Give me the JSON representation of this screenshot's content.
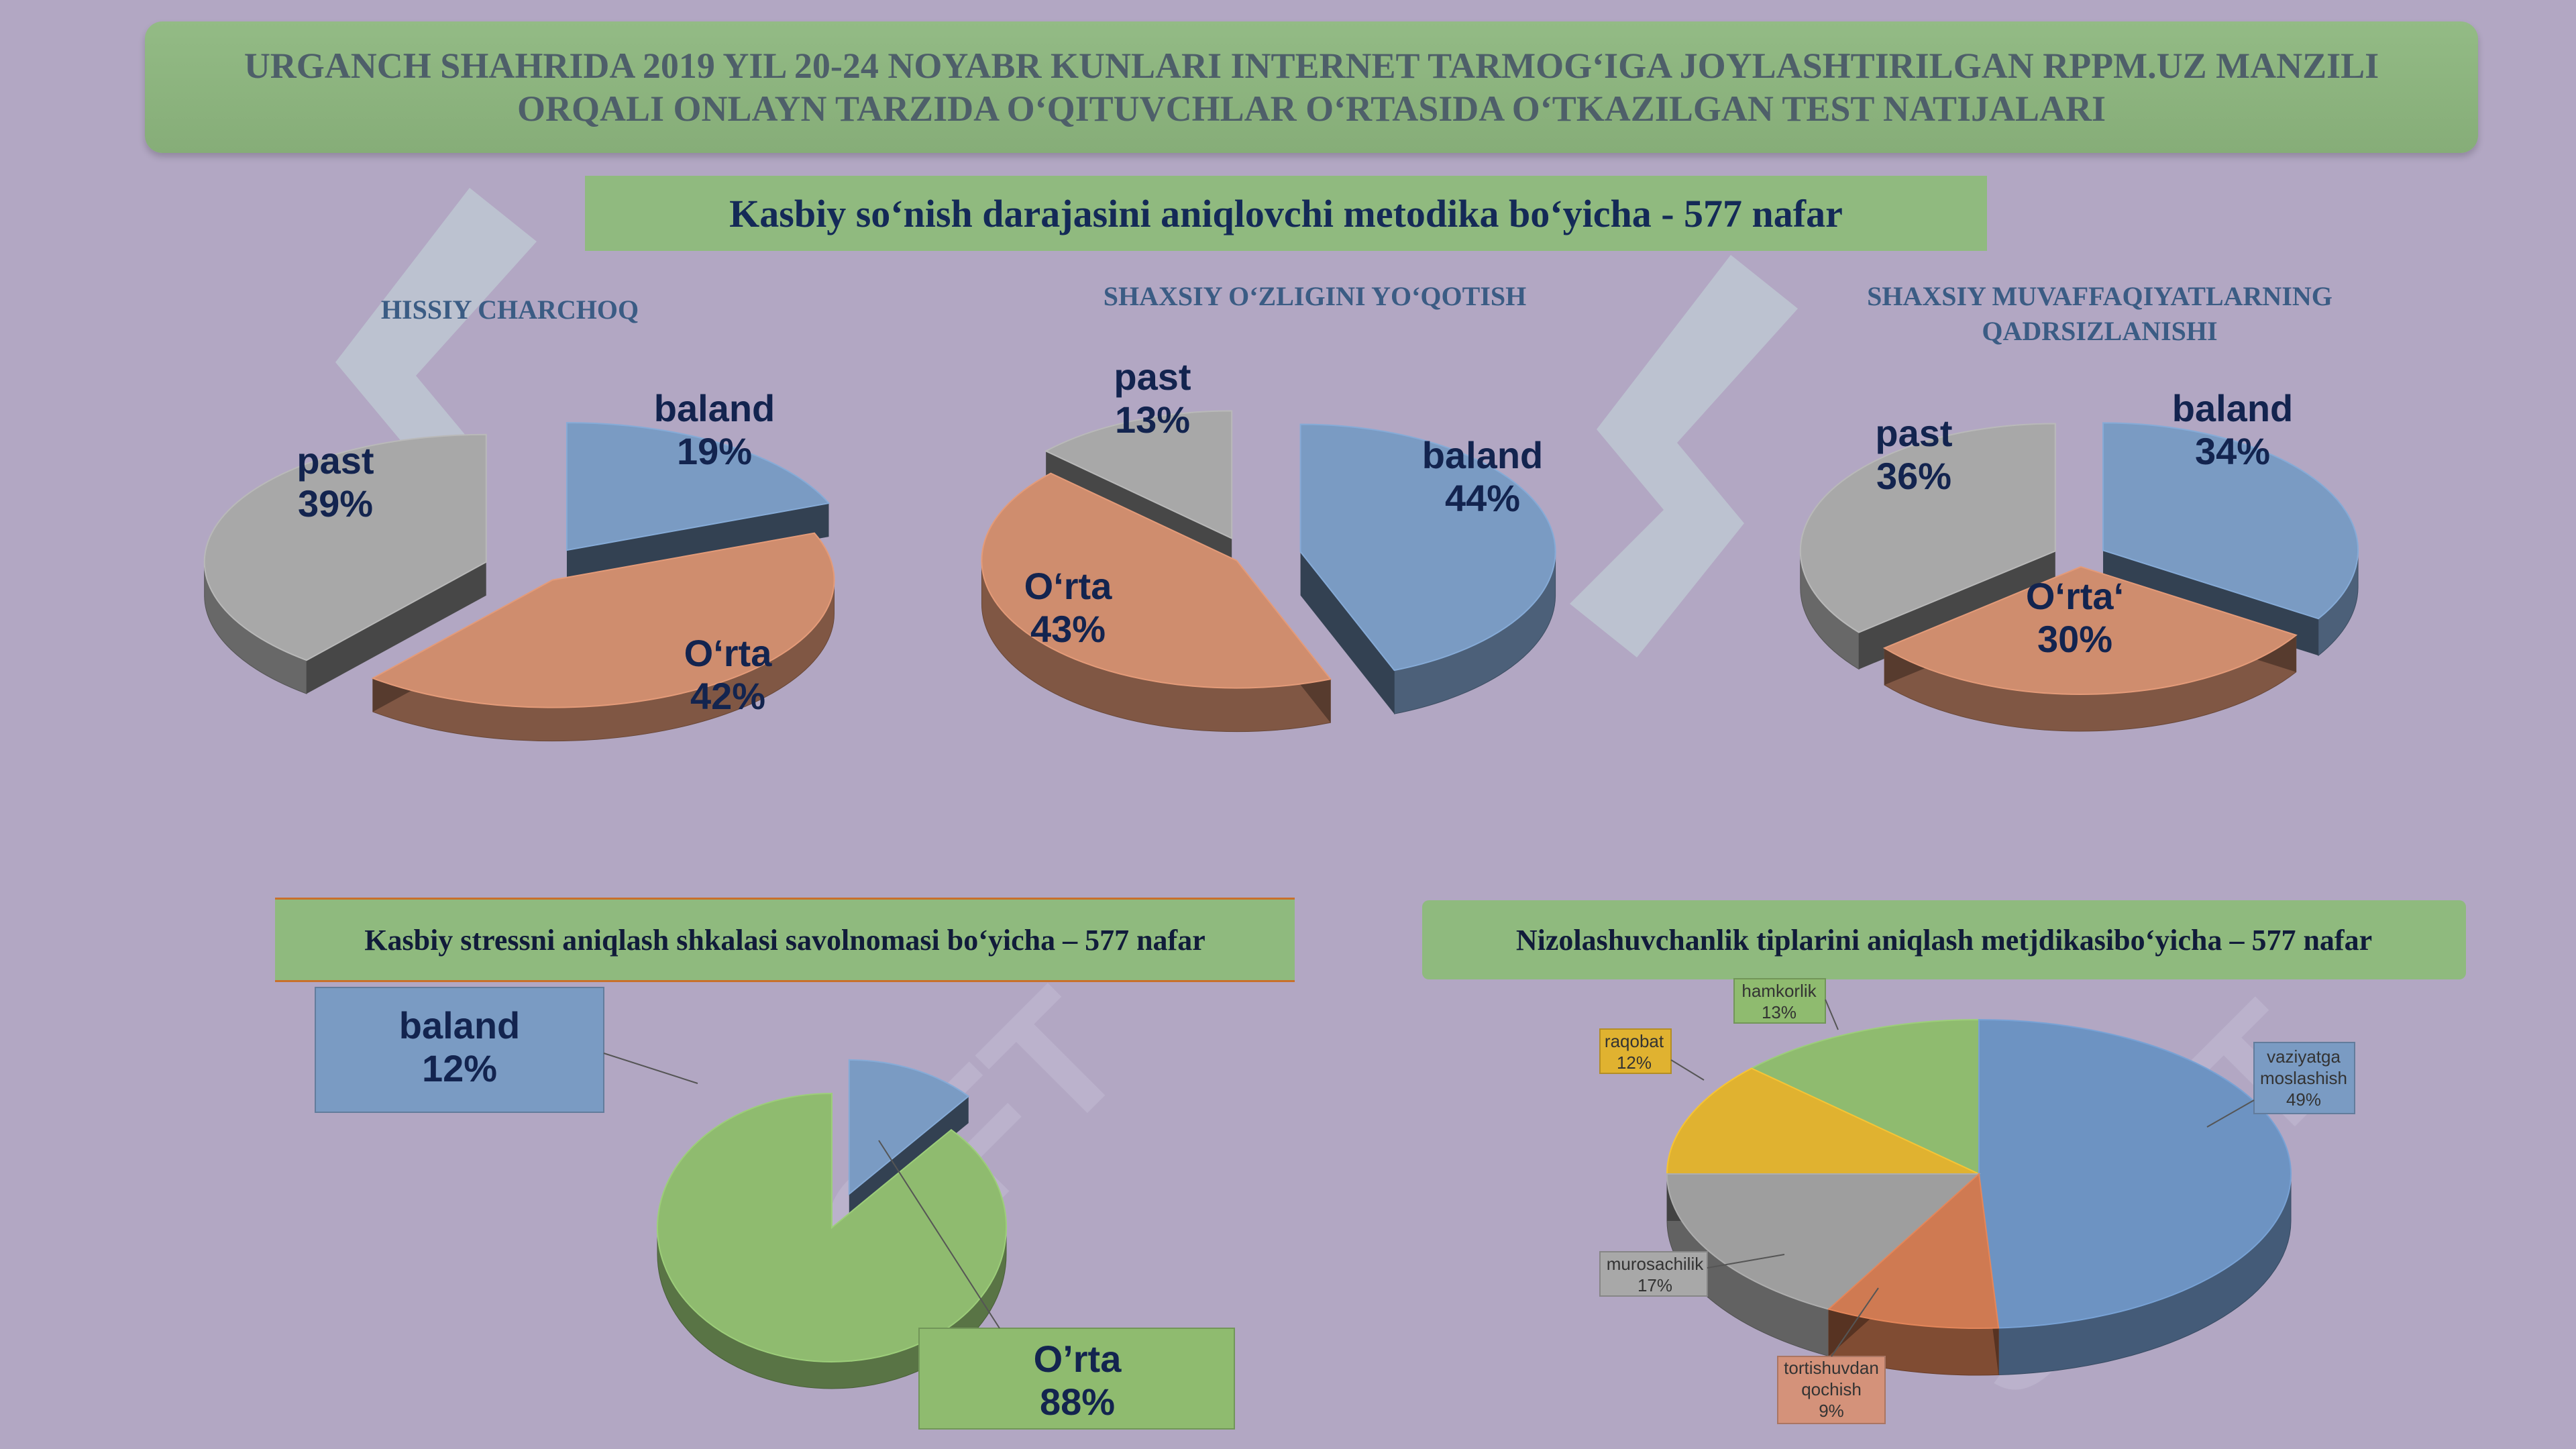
{
  "header": {
    "title": "URGANCH SHAHRIDA 2019 YIL 20-24 NOYABR KUNLARI INTERNET TARMOG‘IGA JOYLASHTIRILGAN RPPM.UZ MANZILI\nORQALI ONLAYN TARZIDA O‘QITUVCHLAR O‘RTASIDA O‘TKAZILGAN TEST NATIJALARI",
    "subtitle": "Kasbiy so‘nish darajasini aniqlovchi metodika bo‘yicha  - 577 nafar"
  },
  "sections": {
    "stress_title": "Kasbiy stressni aniqlash shkalasi savolnomasi bo‘yicha – 577 nafar",
    "conflict_title": "Nizolashuvchanlik tiplarini aniqlash metjdikasibo‘yicha – 577 nafar"
  },
  "colors": {
    "background": "#b2a7c3",
    "banner": "#8db47f",
    "baland": "#7a9bc3",
    "orta": "#cf8d6e",
    "past": "#a8a8a8",
    "green": "#8fbb6f",
    "yellow": "#e0b230"
  },
  "chart_data": [
    {
      "type": "pie",
      "title": "HISSIY CHARCHOQ",
      "categories": [
        "baland",
        "O‘rta",
        "past"
      ],
      "values": [
        19,
        42,
        39
      ],
      "labels": [
        "baland\n19%",
        "O‘rta\n42%",
        "past\n39%"
      ]
    },
    {
      "type": "pie",
      "title": "SHAXSIY O‘ZLIGINI YO‘QOTISH",
      "categories": [
        "baland",
        "O‘rta",
        "past"
      ],
      "values": [
        44,
        43,
        13
      ],
      "labels": [
        "baland\n44%",
        "O‘rta\n43%",
        "past\n13%"
      ]
    },
    {
      "type": "pie",
      "title": "SHAXSIY MUVAFFAQIYATLARNING\nQADRSIZLANISHI",
      "categories": [
        "baland",
        "O‘rta‘",
        "past"
      ],
      "values": [
        34,
        30,
        36
      ],
      "labels": [
        "baland\n34%",
        "O‘rta‘\n30%",
        "past\n36%"
      ]
    },
    {
      "type": "pie",
      "title": "",
      "categories": [
        "baland",
        "O’rta"
      ],
      "values": [
        12,
        88
      ],
      "labels": [
        "baland\n12%",
        "O’rta\n88%"
      ]
    },
    {
      "type": "pie",
      "title": "",
      "categories": [
        "vaziyatga moslashish",
        "tortishuvdan qochish",
        "murosachilik",
        "raqobat",
        "hamkorlik"
      ],
      "values": [
        49,
        9,
        17,
        12,
        13
      ],
      "labels": [
        "vaziyatga\nmoslashish\n49%",
        "tortishuvdan\nqochish\n9%",
        "murosachilik\n17%",
        "raqobat\n12%",
        "hamkorlik\n13%"
      ]
    }
  ]
}
